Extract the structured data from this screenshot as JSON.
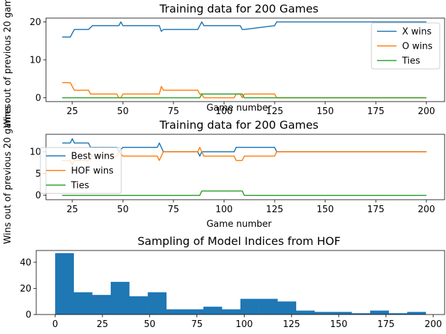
{
  "chart_data": [
    {
      "type": "line",
      "title": "Training data for 200 Games",
      "xlabel": "Game number",
      "ylabel": "Wins out of previous 20 games",
      "xlim": [
        12,
        209
      ],
      "ylim": [
        -1,
        21
      ],
      "xticks": [
        25,
        50,
        75,
        100,
        125,
        150,
        175,
        200
      ],
      "yticks": [
        0,
        10,
        20
      ],
      "legend_position": "right",
      "series": [
        {
          "name": "X wins",
          "color": "#1f77b4",
          "x": [
            20,
            24,
            26,
            33,
            35,
            47,
            48,
            49,
            50,
            68,
            69,
            70,
            87,
            88,
            89,
            90,
            105,
            108,
            109,
            110,
            125,
            126,
            200
          ],
          "y": [
            16,
            16,
            18,
            18,
            19,
            19,
            19,
            20,
            19,
            19,
            17.5,
            18,
            18,
            19,
            20,
            19,
            19,
            19,
            18,
            18,
            19,
            20,
            20
          ]
        },
        {
          "name": "O wins",
          "color": "#ff7f0e",
          "x": [
            20,
            24,
            26,
            33,
            34,
            47,
            48,
            49,
            50,
            68,
            69,
            70,
            87,
            88,
            89,
            90,
            105,
            106,
            108,
            109,
            110,
            125,
            126,
            200
          ],
          "y": [
            4,
            4,
            2,
            2,
            1,
            1,
            0,
            0,
            1,
            1,
            3,
            2,
            2,
            1,
            1,
            0,
            0,
            1,
            1,
            0,
            1,
            1,
            0,
            0
          ]
        },
        {
          "name": "Ties",
          "color": "#2ca02c",
          "x": [
            20,
            88,
            89,
            108,
            109,
            110,
            200
          ],
          "y": [
            0,
            0,
            1,
            1,
            1,
            0,
            0
          ]
        }
      ]
    },
    {
      "type": "line",
      "title": "Training data for 200 Games",
      "xlabel": "Game number",
      "ylabel": "Wins out of previous 20 games",
      "xlim": [
        12,
        209
      ],
      "ylim": [
        -1,
        14
      ],
      "xticks": [
        25,
        50,
        75,
        100,
        125,
        150,
        175,
        200
      ],
      "yticks": [
        0,
        5,
        10
      ],
      "legend_position": "left",
      "series": [
        {
          "name": "Best wins",
          "color": "#1f77b4",
          "x": [
            20,
            24,
            25,
            26,
            33,
            34,
            47,
            48,
            50,
            67,
            68,
            69,
            70,
            87,
            88,
            89,
            90,
            105,
            106,
            108,
            109,
            110,
            125,
            126,
            200
          ],
          "y": [
            12,
            12,
            13,
            12,
            12,
            11,
            11,
            10,
            11,
            11,
            12,
            11,
            10,
            10,
            9,
            10,
            10,
            10,
            11,
            11,
            11,
            11,
            11,
            10,
            10
          ]
        },
        {
          "name": "HOF wins",
          "color": "#ff7f0e",
          "x": [
            20,
            24,
            25,
            26,
            33,
            34,
            47,
            48,
            50,
            67,
            68,
            69,
            70,
            87,
            88,
            89,
            90,
            105,
            106,
            108,
            109,
            110,
            125,
            126,
            200
          ],
          "y": [
            8,
            8,
            7,
            8,
            8,
            9,
            9,
            10,
            9,
            9,
            8,
            9,
            10,
            10,
            11,
            10,
            9,
            9,
            8,
            8,
            8,
            9,
            9,
            10,
            10
          ]
        },
        {
          "name": "Ties",
          "color": "#2ca02c",
          "x": [
            20,
            88,
            89,
            108,
            109,
            110,
            200
          ],
          "y": [
            0,
            0,
            1,
            1,
            1,
            0,
            0
          ]
        }
      ]
    },
    {
      "type": "bar",
      "title": "Sampling of Model Indices from HOF",
      "xlabel": "",
      "ylabel": "",
      "xlim": [
        -10,
        206
      ],
      "ylim": [
        0,
        49
      ],
      "xticks": [
        0,
        25,
        50,
        75,
        100,
        125,
        150,
        175,
        200
      ],
      "yticks": [
        0,
        20,
        40
      ],
      "bin_edges": [
        0,
        9.8,
        19.6,
        29.4,
        39.2,
        49,
        58.8,
        68.6,
        78.4,
        88.2,
        98,
        107.8,
        117.6,
        127.4,
        137.2,
        147,
        156.8,
        166.6,
        176.4,
        186.2,
        196
      ],
      "values": [
        47,
        17,
        15,
        25,
        14,
        17,
        4,
        4,
        6,
        4,
        12,
        12,
        10,
        3,
        2,
        2,
        1,
        3,
        1,
        2
      ],
      "color": "#1f77b4"
    }
  ]
}
